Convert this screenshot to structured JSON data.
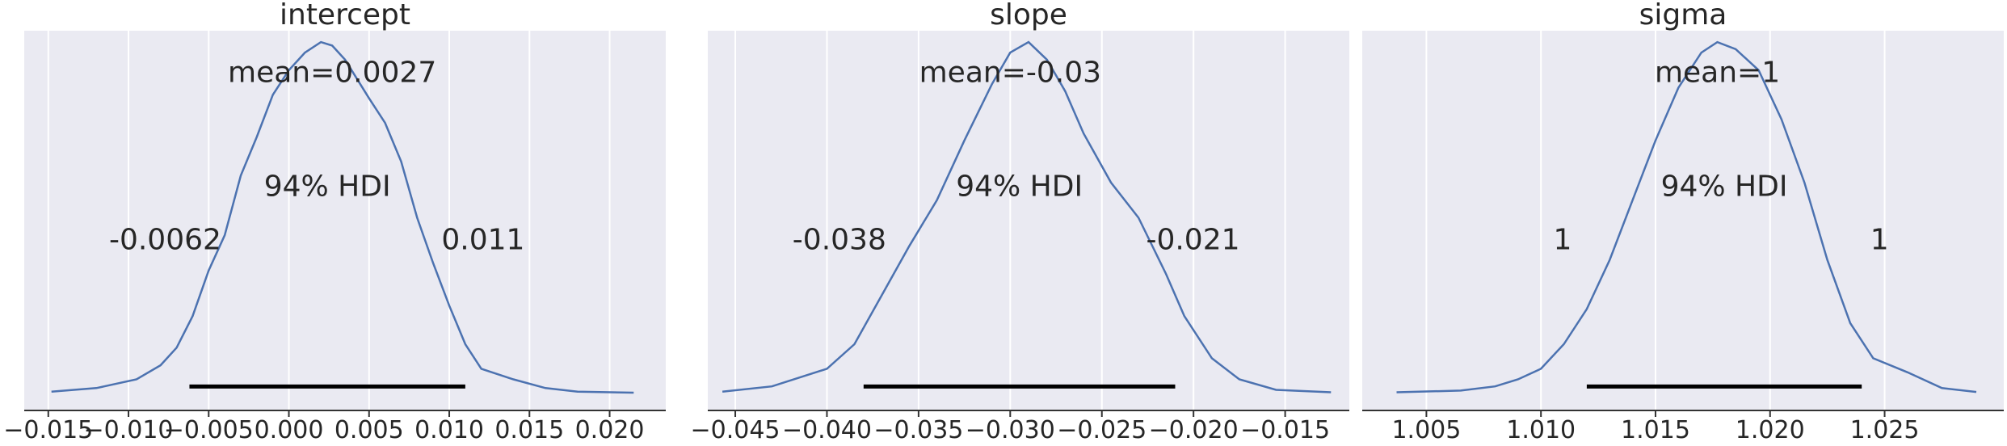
{
  "figure": {
    "background": "#ffffff",
    "panel_background": "#eaeaf2",
    "line_color": "#4c72b0",
    "hdi_color": "#000000"
  },
  "chart_data": [
    {
      "type": "line",
      "title": "intercept",
      "xlabel": "",
      "ylabel": "",
      "xlim": [
        -0.0165,
        0.0235
      ],
      "ylim": [
        0,
        1.08
      ],
      "grid": true,
      "ticks": [
        "−0.015",
        "−0.010",
        "−0.005",
        "0.000",
        "0.005",
        "0.010",
        "0.015",
        "0.020"
      ],
      "tick_values": [
        -0.015,
        -0.01,
        -0.005,
        0.0,
        0.005,
        0.01,
        0.015,
        0.02
      ],
      "mean_label": "mean=0.0027",
      "mean_value": 0.0027,
      "hdi_label": "94% HDI",
      "hdi_low_label": "-0.0062",
      "hdi_high_label": "0.011",
      "hdi": [
        -0.0062,
        0.011
      ],
      "x": [
        -0.0148,
        -0.012,
        -0.0095,
        -0.008,
        -0.007,
        -0.006,
        -0.005,
        -0.004,
        -0.003,
        -0.002,
        -0.001,
        0.0,
        0.001,
        0.002,
        0.0027,
        0.0035,
        0.005,
        0.006,
        0.007,
        0.008,
        0.009,
        0.01,
        0.011,
        0.012,
        0.014,
        0.016,
        0.018,
        0.0215
      ],
      "y": [
        0.005,
        0.015,
        0.04,
        0.08,
        0.13,
        0.22,
        0.35,
        0.45,
        0.62,
        0.73,
        0.85,
        0.92,
        0.97,
        1.0,
        0.99,
        0.95,
        0.84,
        0.77,
        0.66,
        0.5,
        0.37,
        0.25,
        0.14,
        0.07,
        0.04,
        0.015,
        0.005,
        0.002
      ]
    },
    {
      "type": "line",
      "title": "slope",
      "xlabel": "",
      "ylabel": "",
      "xlim": [
        -0.0465,
        -0.0115
      ],
      "ylim": [
        0,
        1.08
      ],
      "grid": true,
      "ticks": [
        "−0.045",
        "−0.040",
        "−0.035",
        "−0.030",
        "−0.025",
        "−0.020",
        "−0.015"
      ],
      "tick_values": [
        -0.045,
        -0.04,
        -0.035,
        -0.03,
        -0.025,
        -0.02,
        -0.015
      ],
      "mean_label": "mean=-0.03",
      "mean_value": -0.03,
      "hdi_label": "94% HDI",
      "hdi_low_label": "-0.038",
      "hdi_high_label": "-0.021",
      "hdi": [
        -0.038,
        -0.021
      ],
      "x": [
        -0.0457,
        -0.043,
        -0.04,
        -0.0385,
        -0.037,
        -0.0355,
        -0.034,
        -0.0325,
        -0.031,
        -0.03,
        -0.029,
        -0.028,
        -0.027,
        -0.026,
        -0.0245,
        -0.023,
        -0.0215,
        -0.0205,
        -0.019,
        -0.0175,
        -0.0155,
        -0.0125
      ],
      "y": [
        0.005,
        0.02,
        0.07,
        0.14,
        0.28,
        0.42,
        0.55,
        0.72,
        0.88,
        0.97,
        1.0,
        0.95,
        0.86,
        0.74,
        0.6,
        0.5,
        0.34,
        0.22,
        0.1,
        0.04,
        0.01,
        0.003
      ]
    },
    {
      "type": "line",
      "title": "sigma",
      "xlabel": "",
      "ylabel": "",
      "xlim": [
        1.0022,
        1.0302
      ],
      "ylim": [
        0,
        1.08
      ],
      "grid": true,
      "ticks": [
        "1.005",
        "1.010",
        "1.015",
        "1.020",
        "1.025"
      ],
      "tick_values": [
        1.005,
        1.01,
        1.015,
        1.02,
        1.025
      ],
      "mean_label": "mean=1",
      "mean_value": 1.0177,
      "hdi_label": "94% HDI",
      "hdi_low_label": "1",
      "hdi_high_label": "1",
      "hdi": [
        1.012,
        1.024
      ],
      "x": [
        1.0037,
        1.0065,
        1.008,
        1.009,
        1.01,
        1.011,
        1.012,
        1.013,
        1.014,
        1.015,
        1.016,
        1.017,
        1.0177,
        1.0185,
        1.0195,
        1.0205,
        1.0215,
        1.0225,
        1.0235,
        1.0245,
        1.026,
        1.0275,
        1.029
      ],
      "y": [
        0.003,
        0.008,
        0.02,
        0.04,
        0.07,
        0.14,
        0.24,
        0.38,
        0.55,
        0.72,
        0.87,
        0.97,
        1.0,
        0.98,
        0.92,
        0.78,
        0.6,
        0.38,
        0.2,
        0.1,
        0.06,
        0.015,
        0.004
      ]
    }
  ]
}
